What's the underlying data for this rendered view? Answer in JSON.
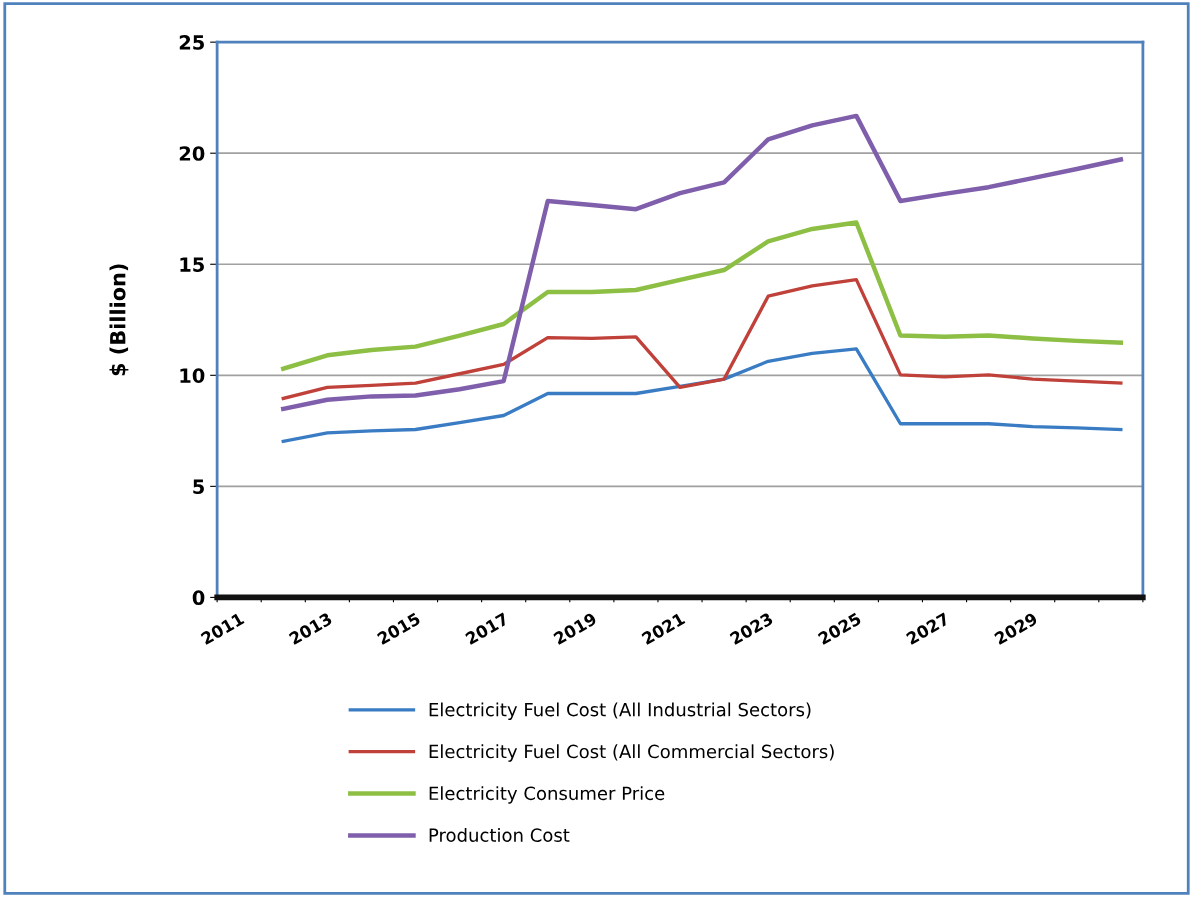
{
  "chart_data": {
    "type": "line",
    "ylabel": "$ (Billion)",
    "categories": [
      "2011",
      null,
      "2013",
      null,
      "2015",
      null,
      "2017",
      null,
      "2019",
      null,
      "2021",
      null,
      "2023",
      null,
      "2025",
      null,
      "2027",
      null,
      "2029",
      null,
      null
    ],
    "series": [
      {
        "name": "Electricity Fuel Cost (All Industrial Sectors)",
        "color": "#3a7cc4",
        "values": [
          null,
          7.03,
          7.41,
          7.5,
          7.56,
          7.87,
          8.19,
          9.18,
          9.18,
          9.18,
          9.5,
          9.83,
          10.63,
          10.99,
          11.19,
          7.82,
          7.82,
          7.82,
          7.69,
          7.63,
          7.56
        ]
      },
      {
        "name": "Electricity Fuel Cost (All Commercial Sectors)",
        "color": "#c0403a",
        "values": [
          null,
          8.96,
          9.46,
          9.55,
          9.65,
          10.07,
          10.49,
          11.7,
          11.66,
          11.73,
          9.46,
          9.83,
          13.56,
          14.03,
          14.31,
          10.02,
          9.93,
          10.02,
          9.83,
          9.74,
          9.65
        ]
      },
      {
        "name": "Electricity Consumer Price",
        "color": "#8cbf44",
        "values": [
          null,
          10.3,
          10.9,
          11.14,
          11.29,
          11.79,
          12.31,
          13.75,
          13.75,
          13.84,
          14.3,
          14.74,
          16.03,
          16.59,
          16.88,
          11.79,
          11.74,
          11.79,
          11.66,
          11.55,
          11.47
        ]
      },
      {
        "name": "Production Cost",
        "color": "#7f5fab",
        "values": [
          null,
          8.49,
          8.9,
          9.05,
          9.09,
          9.37,
          9.74,
          17.85,
          17.67,
          17.48,
          18.2,
          18.69,
          20.62,
          21.25,
          21.68,
          17.85,
          18.17,
          18.47,
          18.88,
          19.29,
          19.72
        ]
      }
    ],
    "ylim": [
      0,
      25
    ],
    "yticks": [
      0,
      5,
      10,
      15,
      20,
      25
    ],
    "grid": "y",
    "legend": "bottom",
    "marker": "none",
    "line_style": "solid"
  }
}
